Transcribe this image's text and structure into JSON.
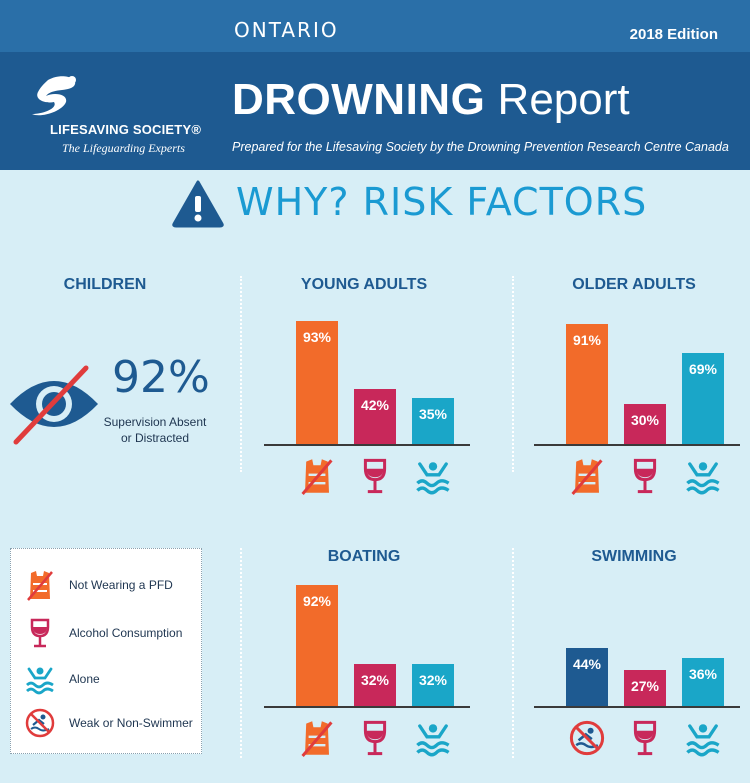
{
  "header": {
    "region": "ONTARIO",
    "edition": "2018 Edition",
    "logo_name": "LIFESAVING SOCIETY®",
    "logo_tagline": "The Lifeguarding Experts",
    "title_bold": "DROWNING",
    "title_rest": "Report",
    "subtitle": "Prepared for the Lifesaving Society by the Drowning Prevention Research Centre Canada"
  },
  "section_title": "WHY? RISK FACTORS",
  "colors": {
    "pfd": "#f26b2a",
    "alcohol": "#c8285a",
    "alone": "#1aa6c8",
    "non_swimmer": "#1e5a91",
    "accent": "#1a9ad2",
    "dark_blue": "#1e5a91"
  },
  "children": {
    "title": "CHILDREN",
    "value": "92%",
    "caption_line1": "Supervision Absent",
    "caption_line2": "or Distracted",
    "icon": "eye-crossed-icon"
  },
  "legend": [
    {
      "label": "Not Wearing a PFD",
      "icon": "life-jacket-crossed-icon"
    },
    {
      "label": "Alcohol Consumption",
      "icon": "wine-glass-icon"
    },
    {
      "label": "Alone",
      "icon": "swimmer-alone-icon"
    },
    {
      "label": "Weak or Non-Swimmer",
      "icon": "no-swimming-icon"
    }
  ],
  "chart_data": [
    {
      "type": "bar",
      "title": "YOUNG ADULTS",
      "categories": [
        "Not Wearing a PFD",
        "Alcohol Consumption",
        "Alone"
      ],
      "values": [
        93,
        42,
        35
      ],
      "labels": [
        "93%",
        "42%",
        "35%"
      ],
      "keys": [
        "pfd",
        "alcohol",
        "alone"
      ]
    },
    {
      "type": "bar",
      "title": "OLDER ADULTS",
      "categories": [
        "Not Wearing a PFD",
        "Alcohol Consumption",
        "Alone"
      ],
      "values": [
        91,
        30,
        69
      ],
      "labels": [
        "91%",
        "30%",
        "69%"
      ],
      "keys": [
        "pfd",
        "alcohol",
        "alone"
      ]
    },
    {
      "type": "bar",
      "title": "BOATING",
      "categories": [
        "Not Wearing a PFD",
        "Alcohol Consumption",
        "Alone"
      ],
      "values": [
        92,
        32,
        32
      ],
      "labels": [
        "92%",
        "32%",
        "32%"
      ],
      "keys": [
        "pfd",
        "alcohol",
        "alone"
      ]
    },
    {
      "type": "bar",
      "title": "SWIMMING",
      "categories": [
        "Weak or Non-Swimmer",
        "Alcohol Consumption",
        "Alone"
      ],
      "values": [
        44,
        27,
        36
      ],
      "labels": [
        "44%",
        "27%",
        "36%"
      ],
      "keys": [
        "non_swimmer",
        "alcohol",
        "alone"
      ]
    }
  ]
}
